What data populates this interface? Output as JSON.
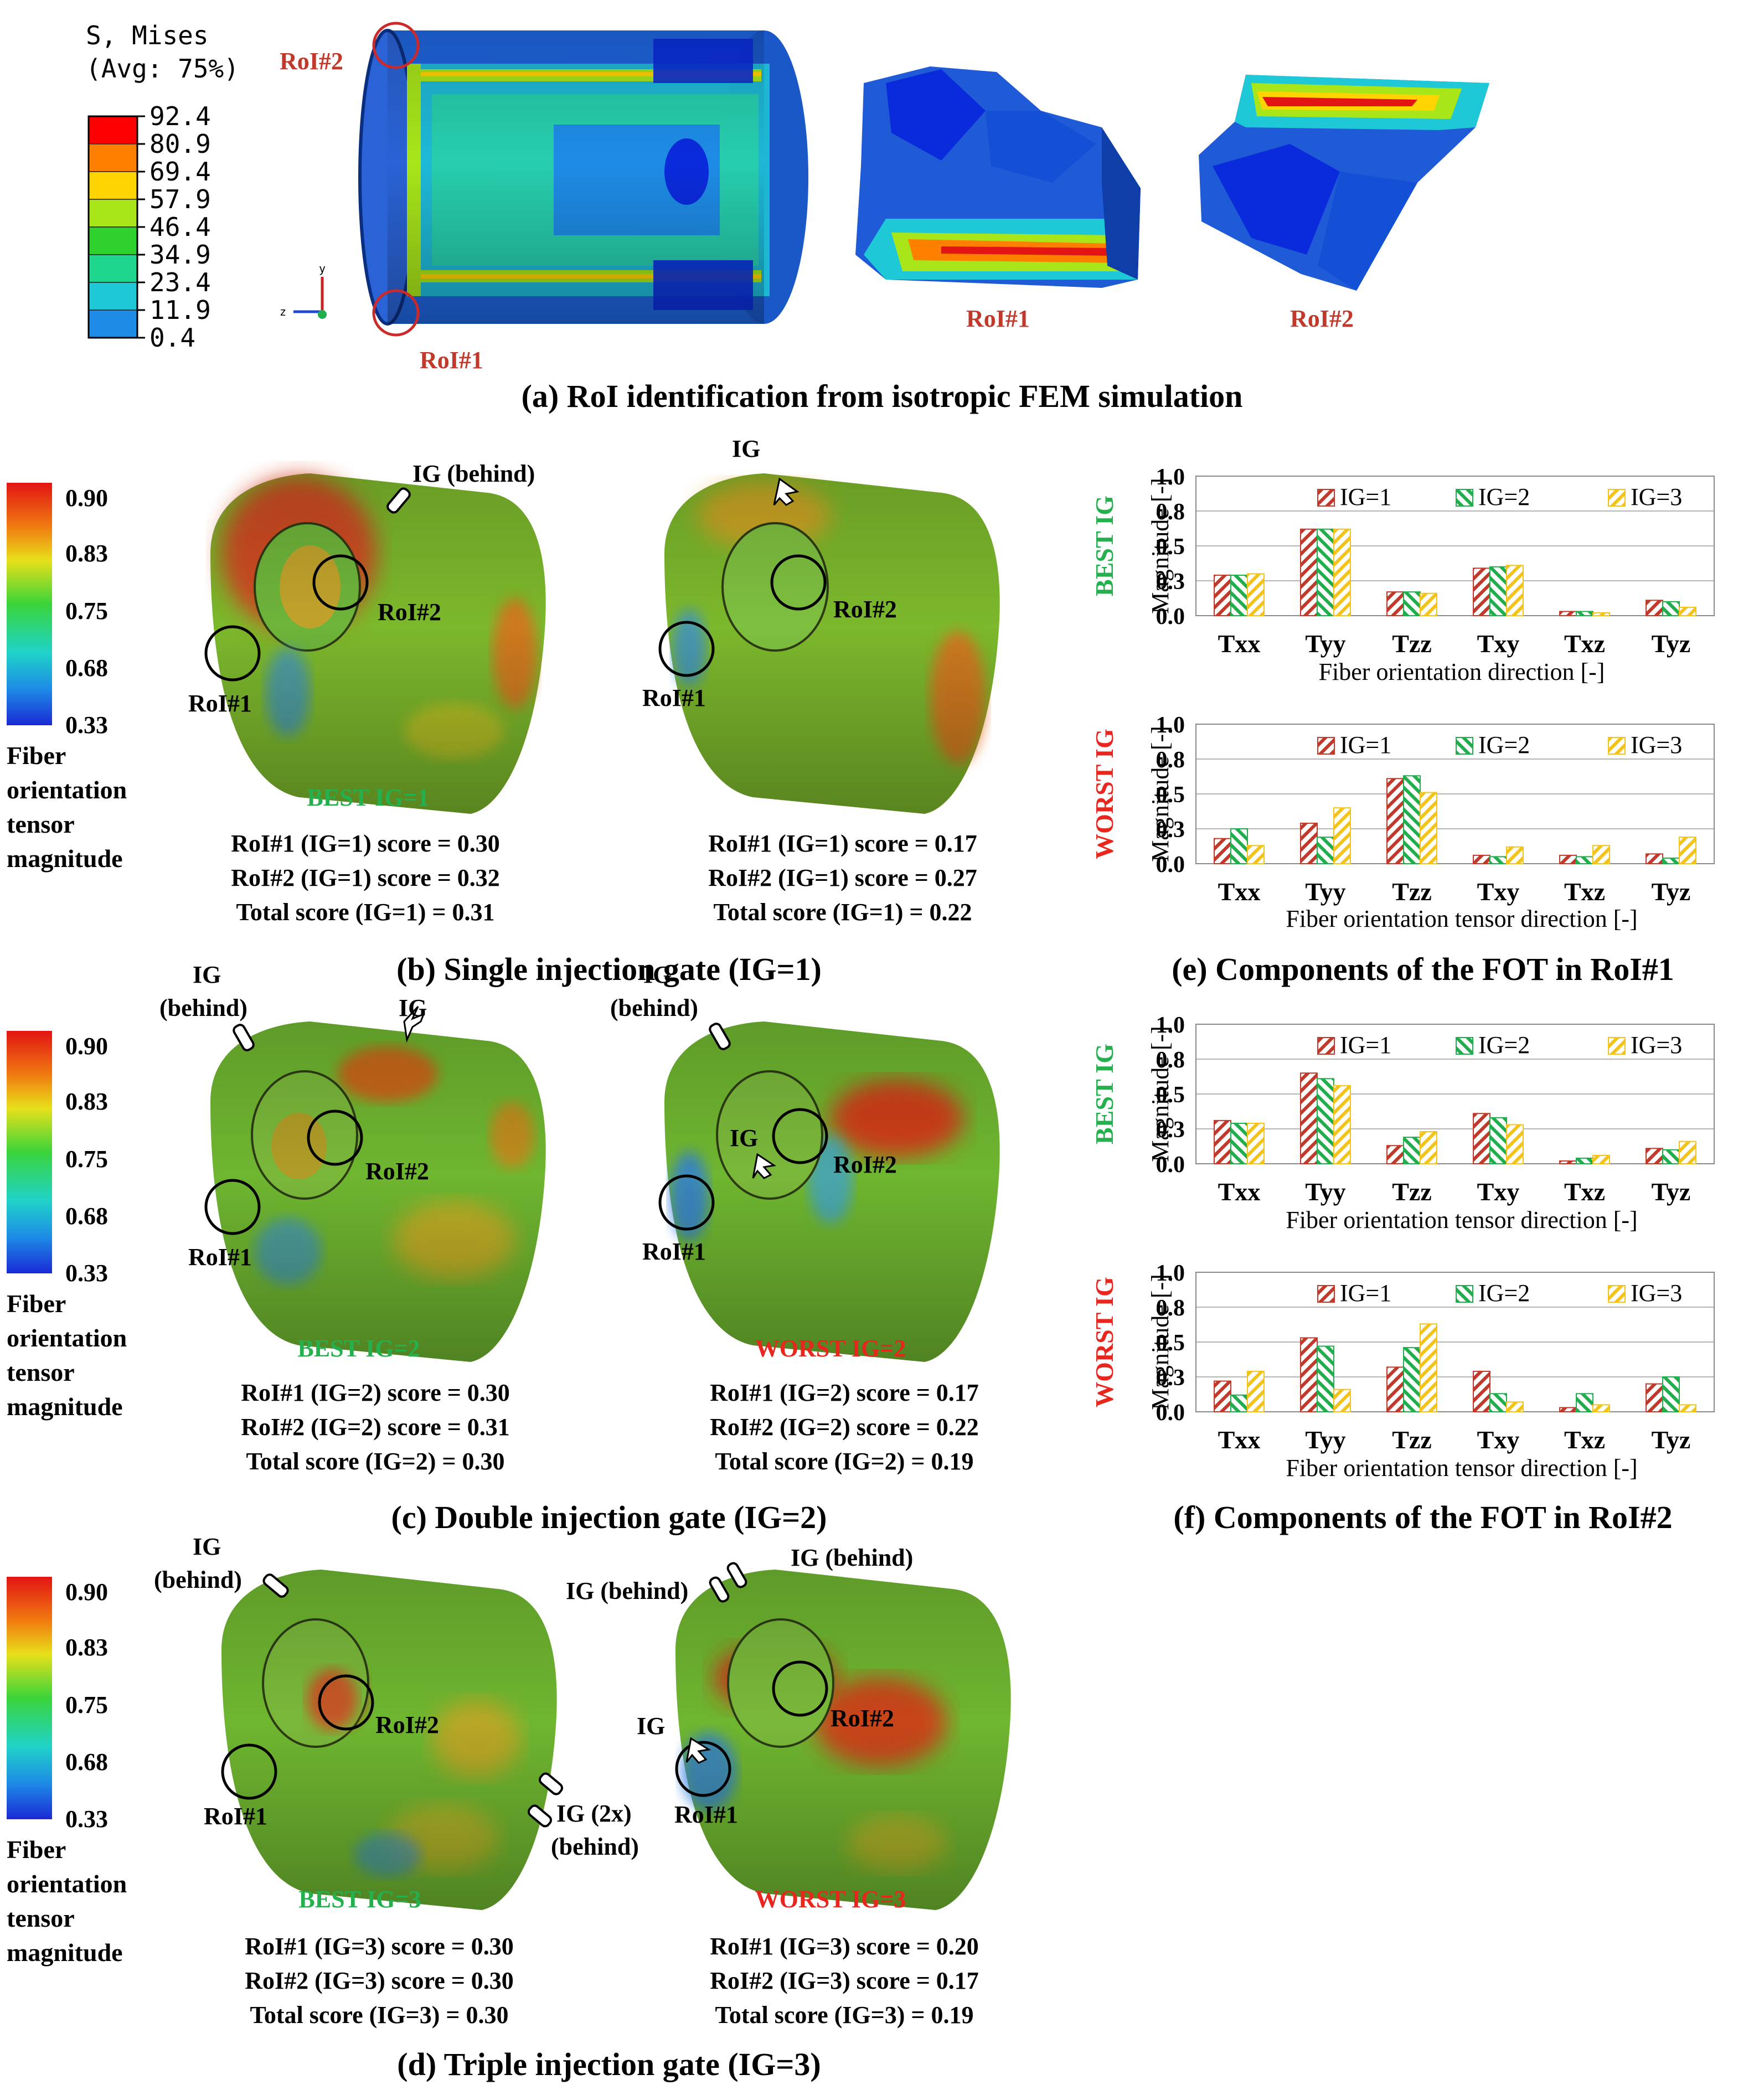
{
  "colors": {
    "red": "#c0392b",
    "green": "#1fae4b",
    "yellow": "#f3c319",
    "best": "#23b04d",
    "worst": "#e8261d",
    "roi_ring": "#cc2a2a",
    "mesh_blue": "#1f5bd6"
  },
  "panel_a": {
    "legend_title1": "S, Mises",
    "legend_title2": "(Avg: 75%)",
    "legend_values": [
      "92.4",
      "80.9",
      "69.4",
      "57.9",
      "46.4",
      "34.9",
      "23.4",
      "11.9",
      "0.4"
    ],
    "legend_colors": [
      "#ff0000",
      "#ff8000",
      "#ffd400",
      "#a8e61a",
      "#2fd12f",
      "#1ed68e",
      "#1ec8d6",
      "#1e8ce6",
      "#0a2bdc"
    ],
    "roi1": "RoI#1",
    "roi2": "RoI#2",
    "axis_y": "y",
    "axis_z": "z",
    "caption": "(a) RoI identification from isotropic FEM simulation"
  },
  "colorbar": {
    "ticks": [
      "0.90",
      "0.83",
      "0.75",
      "0.68",
      "0.33"
    ],
    "label": [
      "Fiber",
      "orientation",
      "tensor",
      "magnitude"
    ]
  },
  "panel_b": {
    "left": {
      "ig": "IG (behind)",
      "roi1": "RoI#1",
      "roi2": "RoI#2",
      "title": "BEST IG=1",
      "scores": [
        "RoI#1 (IG=1) score = 0.30",
        "RoI#2 (IG=1) score = 0.32",
        "Total score (IG=1) = 0.31"
      ]
    },
    "right": {
      "ig": "IG",
      "roi1": "RoI#1",
      "roi2": "RoI#2",
      "scores": [
        "RoI#1 (IG=1) score = 0.17",
        "RoI#2 (IG=1) score = 0.27",
        "Total score (IG=1) = 0.22"
      ]
    },
    "caption": "(b) Single injection gate (IG=1)"
  },
  "panel_c": {
    "left": {
      "ig1": "IG",
      "ig1b": "(behind)",
      "ig2": "IG",
      "roi1": "RoI#1",
      "roi2": "RoI#2",
      "title": "BEST IG=2",
      "scores": [
        "RoI#1 (IG=2) score = 0.30",
        "RoI#2 (IG=2) score = 0.31",
        "Total score (IG=2) = 0.30"
      ]
    },
    "right": {
      "ig1": "IG",
      "ig1b": "(behind)",
      "ig2": "IG",
      "roi1": "RoI#1",
      "roi2": "RoI#2",
      "title": "WORST IG=2",
      "scores": [
        "RoI#1 (IG=2) score = 0.17",
        "RoI#2 (IG=2) score = 0.22",
        "Total score (IG=2) = 0.19"
      ]
    },
    "caption": "(c) Double injection gate (IG=2)"
  },
  "panel_d": {
    "left": {
      "ig1": "IG",
      "ig1b": "(behind)",
      "ig2": "IG (2x)",
      "ig2b": "(behind)",
      "roi1": "RoI#1",
      "roi2": "RoI#2",
      "title": "BEST IG=3",
      "scores": [
        "RoI#1 (IG=3) score = 0.30",
        "RoI#2 (IG=3) score = 0.30",
        "Total score (IG=3) = 0.30"
      ]
    },
    "right": {
      "ig1": "IG (behind)",
      "ig2": "IG (behind)",
      "ig3": "IG",
      "roi1": "RoI#1",
      "roi2": "RoI#2",
      "title": "WORST IG=3",
      "scores": [
        "RoI#1 (IG=3) score = 0.20",
        "RoI#2 (IG=3) score = 0.17",
        "Total score (IG=3) = 0.19"
      ]
    },
    "caption": "(d) Triple injection gate (IG=3)"
  },
  "chart_data": [
    {
      "type": "bar",
      "side": "BEST IG",
      "categories": [
        "Txx",
        "Tyy",
        "Tzz",
        "Txy",
        "Txz",
        "Tyz"
      ],
      "series": [
        {
          "name": "IG=1",
          "values": [
            0.29,
            0.62,
            0.17,
            0.34,
            0.03,
            0.11
          ]
        },
        {
          "name": "IG=2",
          "values": [
            0.29,
            0.62,
            0.17,
            0.35,
            0.03,
            0.1
          ]
        },
        {
          "name": "IG=3",
          "values": [
            0.3,
            0.62,
            0.16,
            0.36,
            0.02,
            0.06
          ]
        }
      ],
      "xlabel": "Fiber orientation direction [-]",
      "ylabel": "Magnitude [-]",
      "yticks": [
        "0.0",
        "0.3",
        "0.5",
        "0.8",
        "1.0"
      ],
      "ylim": [
        0,
        1.0
      ],
      "grid": true,
      "legend": "top"
    },
    {
      "type": "bar",
      "side": "WORST IG",
      "categories": [
        "Txx",
        "Tyy",
        "Tzz",
        "Txy",
        "Txz",
        "Tyz"
      ],
      "series": [
        {
          "name": "IG=1",
          "values": [
            0.18,
            0.29,
            0.61,
            0.06,
            0.06,
            0.07
          ]
        },
        {
          "name": "IG=2",
          "values": [
            0.25,
            0.19,
            0.63,
            0.05,
            0.05,
            0.04
          ]
        },
        {
          "name": "IG=3",
          "values": [
            0.13,
            0.4,
            0.51,
            0.12,
            0.13,
            0.19
          ]
        }
      ],
      "xlabel": "Fiber orientation tensor direction [-]",
      "ylabel": "Magnitude [-]",
      "yticks": [
        "0.0",
        "0.3",
        "0.5",
        "0.8",
        "1.0"
      ],
      "ylim": [
        0,
        1.0
      ],
      "grid": true,
      "legend": "top",
      "caption": "(e) Components of the FOT in RoI#1"
    },
    {
      "type": "bar",
      "side": "BEST IG",
      "categories": [
        "Txx",
        "Tyy",
        "Tzz",
        "Txy",
        "Txz",
        "Tyz"
      ],
      "series": [
        {
          "name": "IG=1",
          "values": [
            0.31,
            0.65,
            0.13,
            0.36,
            0.02,
            0.11
          ]
        },
        {
          "name": "IG=2",
          "values": [
            0.29,
            0.61,
            0.19,
            0.33,
            0.04,
            0.1
          ]
        },
        {
          "name": "IG=3",
          "values": [
            0.29,
            0.56,
            0.23,
            0.28,
            0.06,
            0.16
          ]
        }
      ],
      "xlabel": "Fiber orientation tensor direction [-]",
      "ylabel": "Magnitude [-]",
      "yticks": [
        "0.0",
        "0.3",
        "0.5",
        "0.8",
        "1.0"
      ],
      "ylim": [
        0,
        1.0
      ],
      "grid": true,
      "legend": "top"
    },
    {
      "type": "bar",
      "side": "WORST IG",
      "categories": [
        "Txx",
        "Tyy",
        "Tzz",
        "Txy",
        "Txz",
        "Tyz"
      ],
      "series": [
        {
          "name": "IG=1",
          "values": [
            0.22,
            0.53,
            0.32,
            0.29,
            0.03,
            0.2
          ]
        },
        {
          "name": "IG=2",
          "values": [
            0.12,
            0.47,
            0.46,
            0.13,
            0.13,
            0.25
          ]
        },
        {
          "name": "IG=3",
          "values": [
            0.29,
            0.16,
            0.63,
            0.07,
            0.05,
            0.05
          ]
        }
      ],
      "xlabel": "Fiber orientation tensor direction [-]",
      "ylabel": "Magnitude [-]",
      "yticks": [
        "0.0",
        "0.3",
        "0.5",
        "0.8",
        "1.0"
      ],
      "ylim": [
        0,
        1.0
      ],
      "grid": true,
      "legend": "top",
      "caption": "(f) Components of the FOT in RoI#2"
    }
  ]
}
